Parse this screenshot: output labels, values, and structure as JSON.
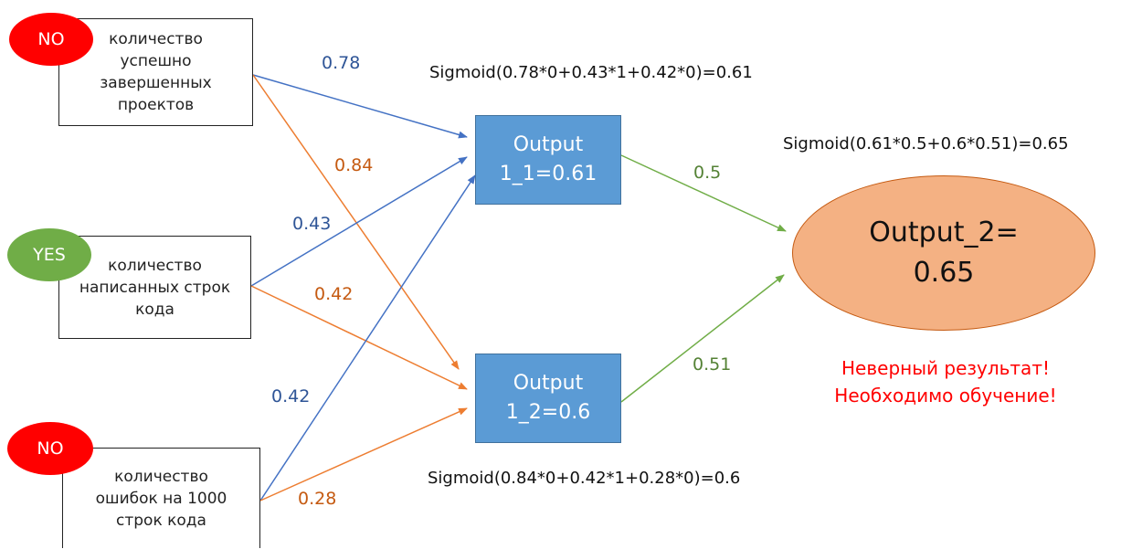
{
  "colors": {
    "blue_line": "#4472c4",
    "orange_line": "#ed7d31",
    "green_line": "#70ad47",
    "weight_blue": "#2f5597",
    "weight_orange": "#c55a11",
    "weight_green": "#548235",
    "badge_no": "#ff0000",
    "badge_yes": "#70ad47",
    "verdict": "#ff0000"
  },
  "inputs": [
    {
      "badge": "NO",
      "lines": [
        "количество",
        "успешно",
        "завершенных",
        "проектов"
      ]
    },
    {
      "badge": "YES",
      "lines": [
        "количество",
        "написанных строк",
        "кода"
      ]
    },
    {
      "badge": "NO",
      "lines": [
        "количество",
        "ошибок на 1000",
        "строк кода"
      ]
    }
  ],
  "hidden": [
    {
      "lines": [
        "Output",
        "1_1=0.61"
      ]
    },
    {
      "lines": [
        "Output",
        "1_2=0.6"
      ]
    }
  ],
  "output": {
    "lines": [
      "Output_2=",
      "0.65"
    ]
  },
  "weights": {
    "w11": "0.78",
    "w12": "0.84",
    "w21": "0.43",
    "w22": "0.42",
    "w31": "0.42",
    "w32": "0.28",
    "h1": "0.5",
    "h2": "0.51"
  },
  "formulas": {
    "hidden1": "Sigmoid(0.78*0+0.43*1+0.42*0)=0.61",
    "hidden2": "Sigmoid(0.84*0+0.42*1+0.28*0)=0.6",
    "output": "Sigmoid(0.61*0.5+0.6*0.51)=0.65"
  },
  "verdict": [
    "Неверный результат!",
    "Необходимо обучение!"
  ]
}
